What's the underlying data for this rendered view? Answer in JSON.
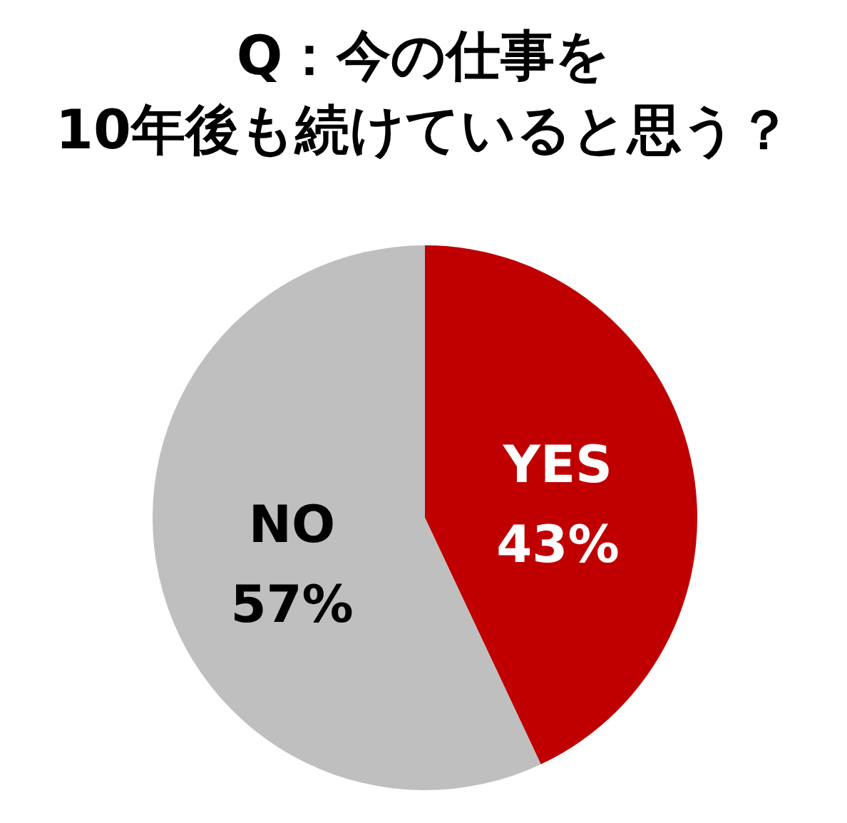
{
  "chart_data": {
    "type": "pie",
    "title": "Q：今の仕事を\n10年後も続けていると思う？",
    "categories": [
      "YES",
      "NO"
    ],
    "values": [
      43,
      57
    ],
    "colors": [
      "#c00000",
      "#bfbfbf"
    ],
    "value_labels": [
      "43%",
      "57%"
    ]
  }
}
